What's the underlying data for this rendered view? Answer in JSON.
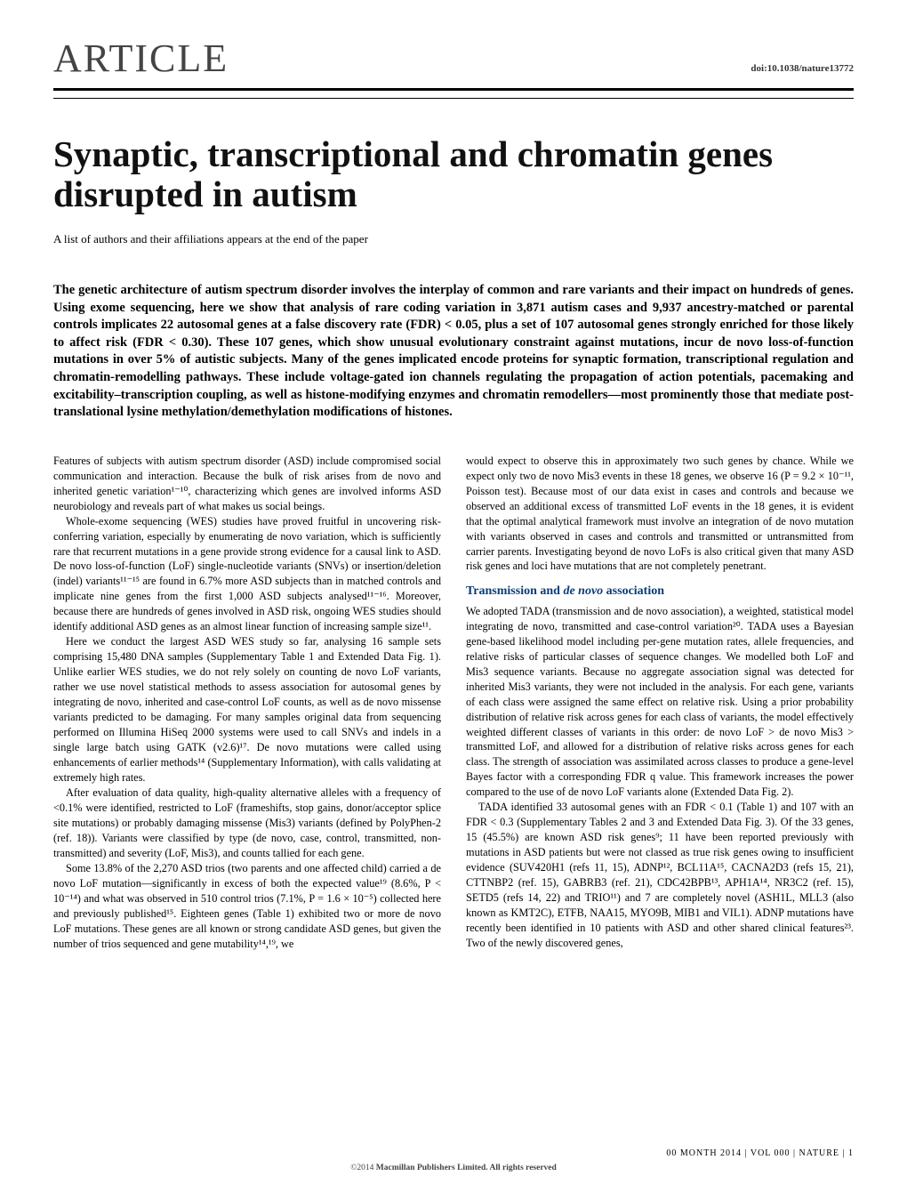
{
  "header": {
    "label": "ARTICLE",
    "doi": "doi:10.1038/nature13772"
  },
  "title": "Synaptic, transcriptional and chromatin genes disrupted in autism",
  "authors_note": "A list of authors and their affiliations appears at the end of the paper",
  "abstract": "The genetic architecture of autism spectrum disorder involves the interplay of common and rare variants and their impact on hundreds of genes. Using exome sequencing, here we show that analysis of rare coding variation in 3,871 autism cases and 9,937 ancestry-matched or parental controls implicates 22 autosomal genes at a false discovery rate (FDR) < 0.05, plus a set of 107 autosomal genes strongly enriched for those likely to affect risk (FDR < 0.30). These 107 genes, which show unusual evolutionary constraint against mutations, incur de novo loss-of-function mutations in over 5% of autistic subjects. Many of the genes implicated encode proteins for synaptic formation, transcriptional regulation and chromatin-remodelling pathways. These include voltage-gated ion channels regulating the propagation of action potentials, pacemaking and excitability–transcription coupling, as well as histone-modifying enzymes and chromatin remodellers—most prominently those that mediate post-translational lysine methylation/demethylation modifications of histones.",
  "left_col": {
    "p1": "Features of subjects with autism spectrum disorder (ASD) include compromised social communication and interaction. Because the bulk of risk arises from de novo and inherited genetic variation¹⁻¹⁰, characterizing which genes are involved informs ASD neurobiology and reveals part of what makes us social beings.",
    "p2": "Whole-exome sequencing (WES) studies have proved fruitful in uncovering risk-conferring variation, especially by enumerating de novo variation, which is sufficiently rare that recurrent mutations in a gene provide strong evidence for a causal link to ASD. De novo loss-of-function (LoF) single-nucleotide variants (SNVs) or insertion/deletion (indel) variants¹¹⁻¹⁵ are found in 6.7% more ASD subjects than in matched controls and implicate nine genes from the first 1,000 ASD subjects analysed¹¹⁻¹⁶. Moreover, because there are hundreds of genes involved in ASD risk, ongoing WES studies should identify additional ASD genes as an almost linear function of increasing sample size¹¹.",
    "p3": "Here we conduct the largest ASD WES study so far, analysing 16 sample sets comprising 15,480 DNA samples (Supplementary Table 1 and Extended Data Fig. 1). Unlike earlier WES studies, we do not rely solely on counting de novo LoF variants, rather we use novel statistical methods to assess association for autosomal genes by integrating de novo, inherited and case-control LoF counts, as well as de novo missense variants predicted to be damaging. For many samples original data from sequencing performed on Illumina HiSeq 2000 systems were used to call SNVs and indels in a single large batch using GATK (v2.6)¹⁷. De novo mutations were called using enhancements of earlier methods¹⁴ (Supplementary Information), with calls validating at extremely high rates.",
    "p4": "After evaluation of data quality, high-quality alternative alleles with a frequency of <0.1% were identified, restricted to LoF (frameshifts, stop gains, donor/acceptor splice site mutations) or probably damaging missense (Mis3) variants (defined by PolyPhen-2 (ref. 18)). Variants were classified by type (de novo, case, control, transmitted, non-transmitted) and severity (LoF, Mis3), and counts tallied for each gene.",
    "p5": "Some 13.8% of the 2,270 ASD trios (two parents and one affected child) carried a de novo LoF mutation—significantly in excess of both the expected value¹⁹ (8.6%, P < 10⁻¹⁴) and what was observed in 510 control trios (7.1%, P = 1.6 × 10⁻⁵) collected here and previously published¹⁵. Eighteen genes (Table 1) exhibited two or more de novo LoF mutations. These genes are all known or strong candidate ASD genes, but given the number of trios sequenced and gene mutability¹⁴,¹⁹, we"
  },
  "right_col": {
    "p1": "would expect to observe this in approximately two such genes by chance. While we expect only two de novo Mis3 events in these 18 genes, we observe 16 (P = 9.2 × 10⁻¹¹, Poisson test). Because most of our data exist in cases and controls and because we observed an additional excess of transmitted LoF events in the 18 genes, it is evident that the optimal analytical framework must involve an integration of de novo mutation with variants observed in cases and controls and transmitted or untransmitted from carrier parents. Investigating beyond de novo LoFs is also critical given that many ASD risk genes and loci have mutations that are not completely penetrant.",
    "section_head": "Transmission and de novo association",
    "p2": "We adopted TADA (transmission and de novo association), a weighted, statistical model integrating de novo, transmitted and case-control variation²⁰. TADA uses a Bayesian gene-based likelihood model including per-gene mutation rates, allele frequencies, and relative risks of particular classes of sequence changes. We modelled both LoF and Mis3 sequence variants. Because no aggregate association signal was detected for inherited Mis3 variants, they were not included in the analysis. For each gene, variants of each class were assigned the same effect on relative risk. Using a prior probability distribution of relative risk across genes for each class of variants, the model effectively weighted different classes of variants in this order: de novo LoF > de novo Mis3 > transmitted LoF, and allowed for a distribution of relative risks across genes for each class. The strength of association was assimilated across classes to produce a gene-level Bayes factor with a corresponding FDR q value. This framework increases the power compared to the use of de novo LoF variants alone (Extended Data Fig. 2).",
    "p3": "TADA identified 33 autosomal genes with an FDR < 0.1 (Table 1) and 107 with an FDR < 0.3 (Supplementary Tables 2 and 3 and Extended Data Fig. 3). Of the 33 genes, 15 (45.5%) are known ASD risk genes⁹; 11 have been reported previously with mutations in ASD patients but were not classed as true risk genes owing to insufficient evidence (SUV420H1 (refs 11, 15), ADNP¹², BCL11A¹⁵, CACNA2D3 (refs 15, 21), CTTNBP2 (ref. 15), GABRB3 (ref. 21), CDC42BPB¹³, APH1A¹⁴, NR3C2 (ref. 15), SETD5 (refs 14, 22) and TRIO¹¹) and 7 are completely novel (ASH1L, MLL3 (also known as KMT2C), ETFB, NAA15, MYO9B, MIB1 and VIL1). ADNP mutations have recently been identified in 10 patients with ASD and other shared clinical features²³. Two of the newly discovered genes,"
  },
  "footer": {
    "top": "00 MONTH 2014 | VOL 000 | NATURE | 1",
    "copyright": "©2014 Macmillan Publishers Limited. All rights reserved"
  }
}
